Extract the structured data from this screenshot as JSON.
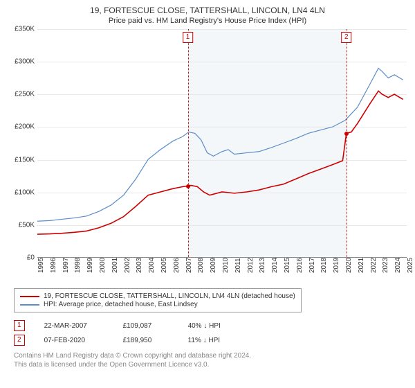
{
  "title_main": "19, FORTESCUE CLOSE, TATTERSHALL, LINCOLN, LN4 4LN",
  "title_sub": "Price paid vs. HM Land Registry's House Price Index (HPI)",
  "chart": {
    "type": "line",
    "background_color": "#ffffff",
    "band_color": "#f0f4f8",
    "grid_color": "#e8e8e8",
    "x_years": [
      1995,
      1996,
      1997,
      1998,
      1999,
      2000,
      2001,
      2002,
      2003,
      2004,
      2005,
      2006,
      2007,
      2008,
      2009,
      2010,
      2011,
      2012,
      2013,
      2014,
      2015,
      2016,
      2017,
      2018,
      2019,
      2020,
      2021,
      2022,
      2023,
      2024,
      2025
    ],
    "x_range": [
      1995,
      2025
    ],
    "y_range": [
      0,
      350000
    ],
    "y_ticks": [
      0,
      50000,
      100000,
      150000,
      200000,
      250000,
      300000,
      350000
    ],
    "y_tick_labels": [
      "£0",
      "£50K",
      "£100K",
      "£150K",
      "£200K",
      "£250K",
      "£300K",
      "£350K"
    ],
    "series": [
      {
        "name": "property",
        "label": "19, FORTESCUE CLOSE, TATTERSHALL, LINCOLN, LN4 4LN (detached house)",
        "color": "#cc0000",
        "line_width": 1.6,
        "data": [
          [
            1995,
            35000
          ],
          [
            1996,
            35500
          ],
          [
            1997,
            36500
          ],
          [
            1998,
            38000
          ],
          [
            1999,
            40000
          ],
          [
            2000,
            45000
          ],
          [
            2001,
            52000
          ],
          [
            2002,
            62000
          ],
          [
            2003,
            78000
          ],
          [
            2004,
            95000
          ],
          [
            2005,
            100000
          ],
          [
            2006,
            105000
          ],
          [
            2006.8,
            108000
          ],
          [
            2007.22,
            109087
          ],
          [
            2007.5,
            110000
          ],
          [
            2008,
            108000
          ],
          [
            2008.5,
            100000
          ],
          [
            2009,
            95000
          ],
          [
            2010,
            100000
          ],
          [
            2011,
            98000
          ],
          [
            2012,
            100000
          ],
          [
            2013,
            103000
          ],
          [
            2014,
            108000
          ],
          [
            2015,
            112000
          ],
          [
            2016,
            120000
          ],
          [
            2017,
            128000
          ],
          [
            2018,
            135000
          ],
          [
            2019,
            142000
          ],
          [
            2019.8,
            148000
          ],
          [
            2020.1,
            189950
          ],
          [
            2020.5,
            192000
          ],
          [
            2021,
            205000
          ],
          [
            2022,
            235000
          ],
          [
            2022.7,
            255000
          ],
          [
            2023,
            250000
          ],
          [
            2023.5,
            245000
          ],
          [
            2024,
            250000
          ],
          [
            2024.7,
            242000
          ]
        ]
      },
      {
        "name": "hpi",
        "label": "HPI: Average price, detached house, East Lindsey",
        "color": "#5a8dc8",
        "line_width": 1.2,
        "data": [
          [
            1995,
            55000
          ],
          [
            1996,
            56000
          ],
          [
            1997,
            58000
          ],
          [
            1998,
            60000
          ],
          [
            1999,
            63000
          ],
          [
            2000,
            70000
          ],
          [
            2001,
            80000
          ],
          [
            2002,
            95000
          ],
          [
            2003,
            120000
          ],
          [
            2004,
            150000
          ],
          [
            2005,
            165000
          ],
          [
            2006,
            178000
          ],
          [
            2006.8,
            185000
          ],
          [
            2007.3,
            192000
          ],
          [
            2007.8,
            190000
          ],
          [
            2008.3,
            180000
          ],
          [
            2008.8,
            160000
          ],
          [
            2009.3,
            155000
          ],
          [
            2010,
            162000
          ],
          [
            2010.5,
            165000
          ],
          [
            2011,
            158000
          ],
          [
            2012,
            160000
          ],
          [
            2013,
            162000
          ],
          [
            2014,
            168000
          ],
          [
            2015,
            175000
          ],
          [
            2016,
            182000
          ],
          [
            2017,
            190000
          ],
          [
            2018,
            195000
          ],
          [
            2019,
            200000
          ],
          [
            2020,
            210000
          ],
          [
            2021,
            230000
          ],
          [
            2022,
            265000
          ],
          [
            2022.7,
            290000
          ],
          [
            2023,
            285000
          ],
          [
            2023.5,
            275000
          ],
          [
            2024,
            280000
          ],
          [
            2024.7,
            272000
          ]
        ]
      }
    ],
    "reference_lines": [
      {
        "num": "1",
        "x": 2007.22,
        "label_y_offset": 4
      },
      {
        "num": "2",
        "x": 2020.1,
        "label_y_offset": 4
      }
    ],
    "markers": [
      {
        "x": 2007.22,
        "y": 109087,
        "color": "#cc0000"
      },
      {
        "x": 2020.1,
        "y": 189950,
        "color": "#cc0000"
      }
    ]
  },
  "legend": {
    "rows": [
      {
        "color": "#cc0000",
        "label": "19, FORTESCUE CLOSE, TATTERSHALL, LINCOLN, LN4 4LN (detached house)"
      },
      {
        "color": "#5a8dc8",
        "label": "HPI: Average price, detached house, East Lindsey"
      }
    ]
  },
  "refs": [
    {
      "num": "1",
      "date": "22-MAR-2007",
      "price": "£109,087",
      "delta": "40% ↓ HPI"
    },
    {
      "num": "2",
      "date": "07-FEB-2020",
      "price": "£189,950",
      "delta": "11% ↓ HPI"
    }
  ],
  "copyright_line1": "Contains HM Land Registry data © Crown copyright and database right 2024.",
  "copyright_line2": "This data is licensed under the Open Government Licence v3.0."
}
